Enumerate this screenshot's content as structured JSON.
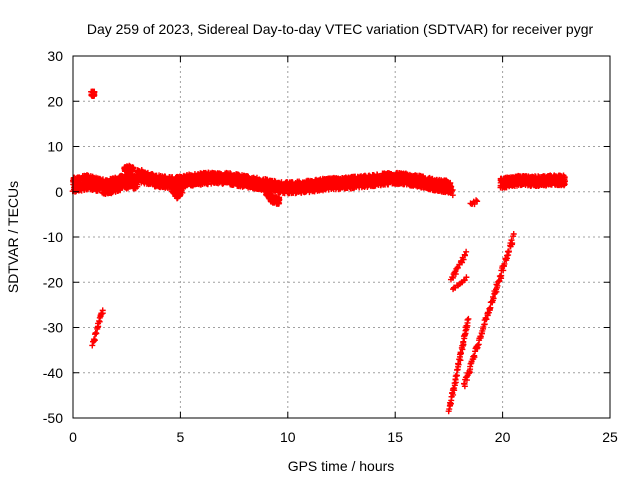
{
  "chart_data": {
    "type": "scatter",
    "title": "Day 259 of 2023, Sidereal Day-to-day VTEC variation (SDTVAR) for receiver pygr",
    "xlabel": "GPS time / hours",
    "ylabel": "SDTVAR / TECUs",
    "xlim": [
      0,
      25
    ],
    "ylim": [
      -50,
      30
    ],
    "xticks": [
      "0",
      "5",
      "10",
      "15",
      "20",
      "25"
    ],
    "yticks": [
      "30",
      "20",
      "10",
      "0",
      "-10",
      "-20",
      "-30",
      "-40",
      "-50"
    ],
    "grid": true,
    "marker": "+",
    "color": "#ff0000",
    "series": [
      {
        "name": "main-band-a",
        "kind": "band",
        "x0": 0.0,
        "x1": 3.0,
        "y": [
          1.5,
          1.8,
          2.2,
          1.6,
          1.0,
          1.4,
          2.0,
          2.4,
          2.0
        ],
        "spread": 1.6
      },
      {
        "name": "main-band-b",
        "kind": "band",
        "x0": 3.0,
        "x1": 17.6,
        "y": [
          3.5,
          2.6,
          2.0,
          2.3,
          2.8,
          3.0,
          2.9,
          2.4,
          1.9,
          1.2,
          0.9,
          1.0,
          1.4,
          1.8,
          1.9,
          2.2,
          2.6,
          3.0,
          2.8,
          2.2,
          1.5,
          1.0
        ],
        "spread": 1.3
      },
      {
        "name": "main-band-c",
        "kind": "band",
        "x0": 19.9,
        "x1": 22.9,
        "y": [
          1.8,
          2.3,
          2.5,
          2.3,
          2.4,
          2.6,
          2.5
        ],
        "spread": 1.1
      },
      {
        "name": "dip-1",
        "kind": "band",
        "x0": 4.6,
        "x1": 5.1,
        "y": [
          0.8,
          -0.8,
          0.5
        ],
        "spread": 0.8
      },
      {
        "name": "dip-2",
        "kind": "band",
        "x0": 9.0,
        "x1": 9.6,
        "y": [
          0.0,
          -1.8,
          -2.0
        ],
        "spread": 0.8
      },
      {
        "name": "bump-1",
        "kind": "band",
        "x0": 2.4,
        "x1": 2.8,
        "y": [
          5.0,
          5.2,
          4.8
        ],
        "spread": 0.6
      },
      {
        "name": "outlier-top",
        "kind": "band",
        "x0": 0.85,
        "x1": 1.0,
        "y": [
          21.8,
          21.6
        ],
        "spread": 0.6
      },
      {
        "name": "early-track",
        "kind": "line",
        "x0": 0.9,
        "y0": -34.0,
        "x1": 1.4,
        "y1": -26.0,
        "spread": 0.6
      },
      {
        "name": "track-a",
        "kind": "line",
        "x0": 17.6,
        "y0": -19.5,
        "x1": 18.3,
        "y1": -13.5,
        "spread": 0.6
      },
      {
        "name": "track-b",
        "kind": "line",
        "x0": 17.7,
        "y0": -21.5,
        "x1": 18.3,
        "y1": -19.0,
        "spread": 0.5
      },
      {
        "name": "track-c",
        "kind": "line",
        "x0": 18.5,
        "y0": -3.0,
        "x1": 18.8,
        "y1": -2.0,
        "spread": 0.5
      },
      {
        "name": "track-d",
        "kind": "line",
        "x0": 17.4,
        "y0": 2.0,
        "x1": 17.7,
        "y1": -0.5,
        "spread": 0.6
      },
      {
        "name": "steep-track-left",
        "kind": "line",
        "x0": 17.5,
        "y0": -48.5,
        "x1": 18.4,
        "y1": -28.0,
        "spread": 0.7
      },
      {
        "name": "steep-track-right",
        "kind": "line",
        "x0": 18.2,
        "y0": -43.0,
        "x1": 20.5,
        "y1": -10.0,
        "spread": 0.7
      }
    ],
    "isolated_points": [
      {
        "x": 2.0,
        "y": 2.6
      },
      {
        "x": 2.5,
        "y": 0.7
      },
      {
        "x": 3.2,
        "y": 4.8
      }
    ]
  }
}
